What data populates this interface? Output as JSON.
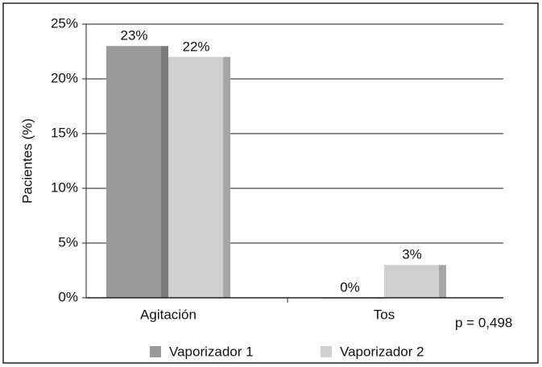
{
  "chart_data": {
    "type": "bar",
    "y_label": "Pacientes (%)",
    "categories": [
      "Agitación",
      "Tos"
    ],
    "series": [
      {
        "name": "Vaporizador 1",
        "color": "#9a9a9a",
        "values": [
          23,
          0
        ],
        "value_labels": [
          "23%",
          "0%"
        ]
      },
      {
        "name": "Vaporizador 2",
        "color": "#d0d0d0",
        "values": [
          22,
          3
        ],
        "value_labels": [
          "22%",
          "3%"
        ]
      }
    ],
    "ylim": [
      0,
      25
    ],
    "yticks": [
      {
        "value": 0,
        "label": "0%"
      },
      {
        "value": 5,
        "label": "5%"
      },
      {
        "value": 10,
        "label": "10%"
      },
      {
        "value": 15,
        "label": "15%"
      },
      {
        "value": 20,
        "label": "20%"
      },
      {
        "value": 25,
        "label": "25%"
      }
    ],
    "grid": true,
    "annotation": "p = 0,498"
  }
}
